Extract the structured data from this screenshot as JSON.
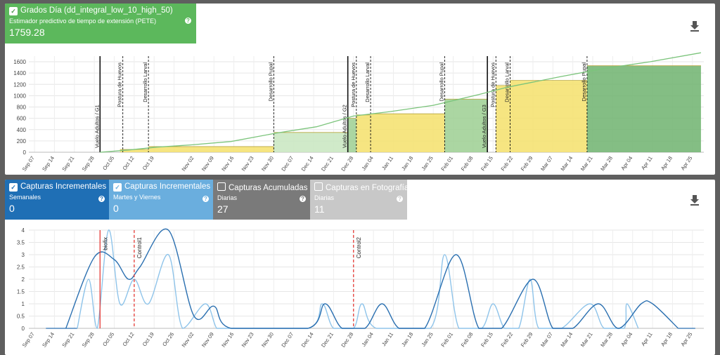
{
  "top": {
    "card": {
      "title": "Grados Día (dd_integral_low_10_high_50)",
      "subtitle": "Estimador predictivo de tiempo de extensión (PETE)",
      "value": "1759.28",
      "color": "#5cb85c",
      "checked": true
    },
    "download_icon": "download-icon",
    "y_ticks": [
      "0",
      "200",
      "400",
      "600",
      "800",
      "1000",
      "1200",
      "1400",
      "1600"
    ],
    "x_ticks": [
      "Sep 07",
      "Sep 14",
      "Sep 21",
      "Sep 28",
      "Oct 05",
      "Oct 12",
      "Oct 19",
      "Oct 26",
      "Nov 02",
      "Nov 09",
      "Nov 16",
      "Nov 23",
      "Nov 30",
      "Dec 07",
      "Dec 14",
      "Dec 21",
      "Dec 28",
      "Jan 04",
      "Jan 11",
      "Jan 18",
      "Jan 25",
      "Feb 01",
      "Feb 08",
      "Feb 15",
      "Feb 22",
      "Feb 29",
      "Mar 07",
      "Mar 14",
      "Mar 21",
      "Mar 28",
      "Apr 04",
      "Apr 11",
      "Apr 18",
      "Apr 25"
    ],
    "x_tick_labels_printed": [
      "Sep 07",
      "Sep 14",
      "Sep 21",
      "Sep 28",
      "Oct 05",
      "Oct 12",
      "Oct 19",
      "Nov 02",
      "Nov 09",
      "Nov 16",
      "Nov 23",
      "Nov 30",
      "Dec 07",
      "Dec 14",
      "Dec 21",
      "Dec 28",
      "Jan 04",
      "Jan 11",
      "Jan 18",
      "Jan 25",
      "Feb 01",
      "Feb 08",
      "Feb 15",
      "Feb 22",
      "Feb 29",
      "Mar 07",
      "Mar 14",
      "Mar 21",
      "Mar 28",
      "Apr 04",
      "Apr 11",
      "Apr 18",
      "Apr 25"
    ],
    "stage_labels": [
      "Vuelo Adultos / G1",
      "Postura de Huevos",
      "Desarrollo Larval",
      "Desarrollo Pupal",
      "Vuelo Adultos / G2",
      "Postura de Huevos",
      "Desarrollo Larval",
      "Desarrollo Pupal",
      "Vuelo Adultos / G3",
      "Postura de Huevos",
      "Desarrollo Larval",
      "Desarrollo Pupal"
    ]
  },
  "bottom": {
    "cards": [
      {
        "title": "Capturas Incrementales",
        "subtitle": "Semanales",
        "value": "0",
        "color": "#1f6fb5",
        "checked": true
      },
      {
        "title": "Capturas Incrementales",
        "subtitle": "Martes y Viernes",
        "value": "0",
        "color": "#6aaede",
        "checked": true
      },
      {
        "title": "Capturas Acumuladas",
        "subtitle": "Diarias",
        "value": "27",
        "color": "#7a7a7a",
        "checked": false
      },
      {
        "title": "Capturas en Fotografía",
        "subtitle": "Diarias",
        "value": "11",
        "color": "#c8c8c8",
        "checked": false
      }
    ],
    "download_icon": "download-icon",
    "y_ticks": [
      "0",
      "0.5",
      "1",
      "1.5",
      "2",
      "2.5",
      "3",
      "3.5",
      "4"
    ],
    "x_ticks": [
      "Sep 07",
      "Sep 14",
      "Sep 21",
      "Sep 28",
      "Oct 05",
      "Oct 12",
      "Oct 19",
      "Oct 26",
      "Nov 02",
      "Nov 09",
      "Nov 16",
      "Nov 23",
      "Nov 30",
      "Dec 07",
      "Dec 14",
      "Dec 21",
      "Dec 28",
      "Jan 04",
      "Jan 11",
      "Jan 18",
      "Jan 25",
      "Feb 01",
      "Feb 08",
      "Feb 15",
      "Feb 22",
      "Feb 29",
      "Mar 07",
      "Mar 14",
      "Mar 21",
      "Mar 28",
      "Apr 04",
      "Apr 11",
      "Apr 18",
      "Apr 25"
    ],
    "markers": [
      {
        "label": "biofix",
        "color": "#e53935",
        "style": "solid"
      },
      {
        "label": "Control1",
        "color": "#e53935",
        "style": "dashed"
      },
      {
        "label": "Control2",
        "color": "#e53935",
        "style": "dashed"
      }
    ]
  },
  "chart_data": [
    {
      "type": "area",
      "y_range": [
        0,
        1700
      ],
      "x_range": [
        "Sep 07",
        "Apr 25"
      ],
      "grid": true,
      "series": [
        {
          "values_x": [
            "Sep 30",
            "Oct 10",
            "Oct 20",
            "Nov 01",
            "Nov 15",
            "Dec 01",
            "Dec 15",
            "Dec 28",
            "Jan 10",
            "Jan 25",
            "Feb 10",
            "Feb 20",
            "Mar 10",
            "Mar 25",
            "Apr 10",
            "Apr 28"
          ],
          "values": [
            0,
            40,
            90,
            130,
            190,
            340,
            450,
            640,
            720,
            830,
            1020,
            1150,
            1340,
            1480,
            1600,
            1760
          ]
        }
      ],
      "bands": [
        {
          "from": "Oct 07",
          "to": "Oct 17",
          "value": 50,
          "color": "#f5e16b"
        },
        {
          "from": "Oct 17",
          "to": "Nov 30",
          "value": 100,
          "color": "#f5e16b"
        },
        {
          "from": "Nov 30",
          "to": "Dec 26",
          "value": 350,
          "color": "#c8e6c0"
        },
        {
          "from": "Dec 26",
          "to": "Dec 29",
          "value": 600,
          "color": "#9ccf92"
        },
        {
          "from": "Dec 29",
          "to": "Jan 03",
          "value": 660,
          "color": "#f5e16b"
        },
        {
          "from": "Jan 03",
          "to": "Jan 29",
          "value": 680,
          "color": "#f5e16b"
        },
        {
          "from": "Jan 29",
          "to": "Feb 13",
          "value": 940,
          "color": "#9ccf92"
        },
        {
          "from": "Feb 16",
          "to": "Feb 21",
          "value": 1180,
          "color": "#f5e16b"
        },
        {
          "from": "Feb 21",
          "to": "Mar 19",
          "value": 1270,
          "color": "#f5e16b"
        },
        {
          "from": "Mar 19",
          "to": "Apr 28",
          "value": 1530,
          "color": "#6fb36f"
        }
      ]
    },
    {
      "type": "line",
      "y_range": [
        0,
        4
      ],
      "x_range": [
        "Sep 07",
        "Apr 25"
      ],
      "grid": true,
      "series": [
        {
          "name": "Capturas Incrementales Semanales",
          "color": "#2a6fb0",
          "x": [
            "Sep 18",
            "Sep 28",
            "Oct 05",
            "Oct 10",
            "Oct 14",
            "Oct 24",
            "Nov 02",
            "Nov 09",
            "Nov 15",
            "Dec 12",
            "Dec 18",
            "Dec 24",
            "Jan 01",
            "Jan 07",
            "Jan 13",
            "Jan 22",
            "Feb 02",
            "Feb 10",
            "Feb 18",
            "Feb 29",
            "Mar 07",
            "Mar 14",
            "Mar 23",
            "Mar 30",
            "Apr 07",
            "Apr 11",
            "Apr 20"
          ],
          "values": [
            0,
            2.9,
            2.8,
            2.0,
            2.5,
            4.0,
            0.5,
            0.9,
            0,
            0,
            1.0,
            0,
            0,
            1.0,
            0,
            0,
            3.0,
            0,
            0,
            2.0,
            0,
            0,
            1.0,
            0,
            1.0,
            1.0,
            0
          ]
        },
        {
          "name": "Capturas Incrementales Martes y Viernes",
          "color": "#8fc4ea",
          "x": [
            "Sep 22",
            "Sep 26",
            "Sep 29",
            "Oct 03",
            "Oct 07",
            "Oct 12",
            "Oct 17",
            "Oct 24",
            "Oct 29",
            "Nov 06",
            "Nov 10",
            "Nov 14",
            "Dec 12",
            "Dec 17",
            "Dec 21",
            "Dec 28",
            "Dec 31",
            "Jan 05",
            "Jan 24",
            "Jan 29",
            "Feb 03",
            "Feb 11",
            "Feb 15",
            "Feb 19",
            "Feb 24",
            "Feb 28",
            "Mar 02",
            "Mar 10",
            "Mar 20",
            "Mar 25",
            "Apr 01",
            "Apr 02",
            "Apr 06"
          ],
          "values": [
            0,
            2.0,
            0,
            4.0,
            1.0,
            2.0,
            1.0,
            3.0,
            0,
            1.0,
            0,
            0,
            0,
            1.0,
            0,
            0,
            1.0,
            0,
            0,
            3.0,
            0,
            0,
            1.0,
            0,
            0,
            2.0,
            0,
            0,
            1.0,
            0,
            0,
            1.0,
            0
          ]
        }
      ]
    }
  ]
}
